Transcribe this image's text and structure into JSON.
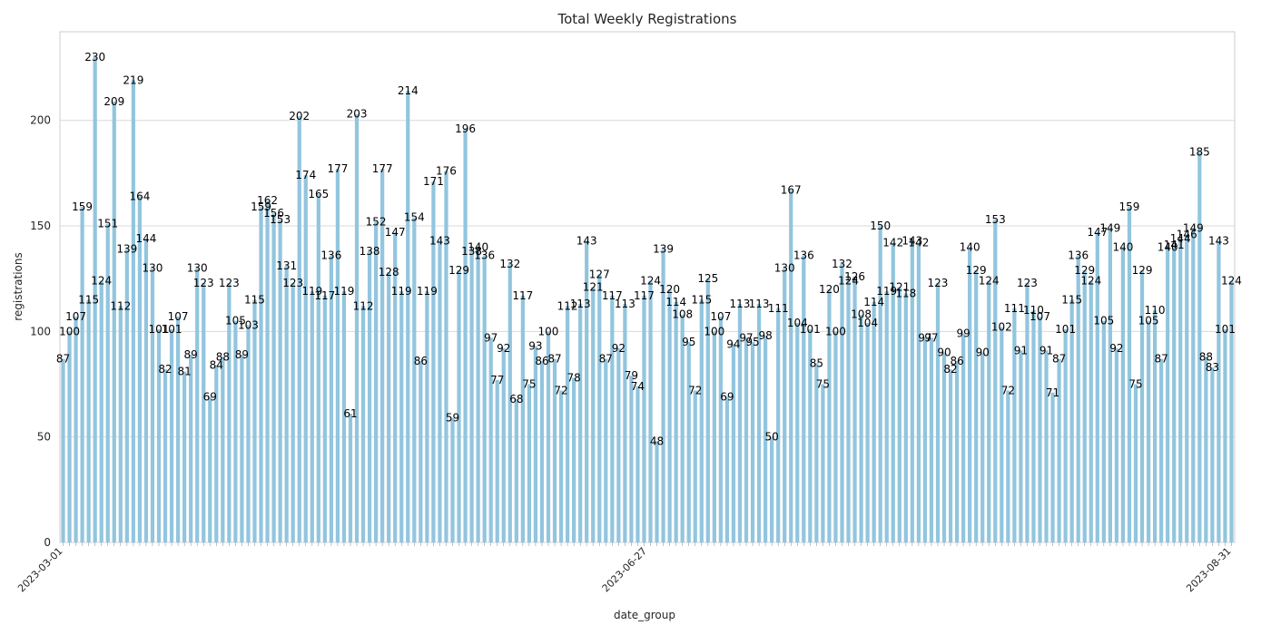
{
  "chart_data": {
    "type": "bar",
    "title": "Total Weekly Registrations",
    "xlabel": "date_group",
    "ylabel": "registrations",
    "ylim": [
      0,
      242
    ],
    "yticks": [
      0,
      50,
      100,
      150,
      200
    ],
    "grid": "horizontal",
    "bar_color": "#92c5de",
    "x_tick_labels_legible": false,
    "x_tick_labels_visible": [
      "2023-03-01",
      "2023-06-27",
      "2023-08-31"
    ],
    "values": [
      87,
      100,
      107,
      159,
      115,
      230,
      124,
      151,
      209,
      112,
      139,
      219,
      164,
      144,
      130,
      101,
      82,
      101,
      107,
      81,
      89,
      130,
      123,
      69,
      84,
      88,
      123,
      105,
      89,
      103,
      115,
      159,
      162,
      156,
      153,
      131,
      123,
      202,
      174,
      119,
      165,
      117,
      136,
      177,
      119,
      61,
      203,
      112,
      138,
      152,
      177,
      128,
      147,
      119,
      214,
      154,
      86,
      119,
      171,
      143,
      176,
      59,
      129,
      196,
      138,
      140,
      136,
      97,
      77,
      92,
      132,
      68,
      117,
      75,
      93,
      86,
      100,
      87,
      72,
      112,
      78,
      113,
      143,
      121,
      127,
      87,
      117,
      92,
      113,
      79,
      74,
      117,
      124,
      48,
      139,
      120,
      114,
      108,
      95,
      72,
      115,
      125,
      100,
      107,
      69,
      94,
      113,
      97,
      95,
      113,
      98,
      50,
      111,
      130,
      167,
      104,
      136,
      101,
      85,
      75,
      120,
      100,
      132,
      124,
      126,
      108,
      104,
      114,
      150,
      119,
      142,
      121,
      118,
      143,
      142,
      97,
      97,
      123,
      90,
      82,
      86,
      99,
      140,
      129,
      90,
      124,
      153,
      102,
      72,
      111,
      91,
      123,
      110,
      107,
      91,
      71,
      87,
      101,
      115,
      136,
      129,
      124,
      147,
      105,
      149,
      92,
      140,
      159,
      75,
      129,
      105,
      110,
      87,
      140,
      141,
      144,
      146,
      149,
      185,
      88,
      83,
      143,
      101,
      124
    ]
  }
}
